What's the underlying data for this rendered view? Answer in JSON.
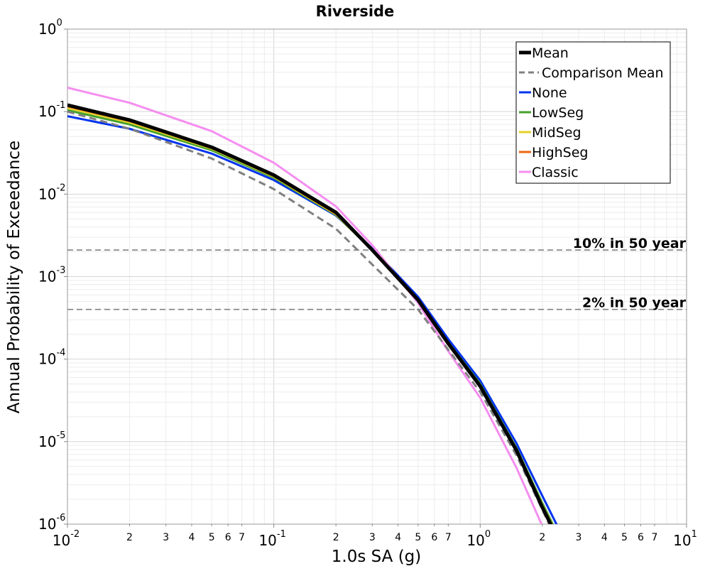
{
  "chart_data": {
    "type": "line",
    "title": "Riverside",
    "xlabel": "1.0s SA (g)",
    "ylabel": "Annual Probability of Exceedance",
    "xscale": "log",
    "yscale": "log",
    "xlim": [
      0.01,
      10
    ],
    "ylim": [
      1e-06,
      1
    ],
    "grid": true,
    "legend_position": "top-right",
    "x_major_ticks": [
      {
        "value": 0.01,
        "base": "10",
        "exp": "-2"
      },
      {
        "value": 0.1,
        "base": "10",
        "exp": "-1"
      },
      {
        "value": 1,
        "base": "10",
        "exp": "0"
      },
      {
        "value": 10,
        "base": "10",
        "exp": "1"
      }
    ],
    "x_minor_ticks": [
      {
        "value": 0.02,
        "label": "2"
      },
      {
        "value": 0.03,
        "label": "3"
      },
      {
        "value": 0.04,
        "label": "4"
      },
      {
        "value": 0.05,
        "label": "5"
      },
      {
        "value": 0.06,
        "label": "6"
      },
      {
        "value": 0.07,
        "label": "7"
      },
      {
        "value": 0.2,
        "label": "2"
      },
      {
        "value": 0.3,
        "label": "3"
      },
      {
        "value": 0.4,
        "label": "4"
      },
      {
        "value": 0.5,
        "label": "5"
      },
      {
        "value": 0.6,
        "label": "6"
      },
      {
        "value": 0.7,
        "label": "7"
      },
      {
        "value": 2,
        "label": "2"
      },
      {
        "value": 3,
        "label": "3"
      },
      {
        "value": 4,
        "label": "4"
      },
      {
        "value": 5,
        "label": "5"
      },
      {
        "value": 6,
        "label": "6"
      },
      {
        "value": 7,
        "label": "7"
      }
    ],
    "y_major_ticks": [
      {
        "value": 1,
        "base": "10",
        "exp": "0"
      },
      {
        "value": 0.1,
        "base": "10",
        "exp": "-1"
      },
      {
        "value": 0.01,
        "base": "10",
        "exp": "-2"
      },
      {
        "value": 0.001,
        "base": "10",
        "exp": "-3"
      },
      {
        "value": 0.0001,
        "base": "10",
        "exp": "-4"
      },
      {
        "value": 1e-05,
        "base": "10",
        "exp": "-5"
      },
      {
        "value": 1e-06,
        "base": "10",
        "exp": "-6"
      }
    ],
    "reference_lines": [
      {
        "label": "10% in 50 year",
        "y": 0.0021,
        "color": "#808080"
      },
      {
        "label": "2% in 50 year",
        "y": 0.0004,
        "color": "#808080"
      }
    ],
    "x": [
      0.01,
      0.02,
      0.05,
      0.1,
      0.2,
      0.3,
      0.5,
      0.7,
      1.0,
      1.5,
      2.0,
      2.5
    ],
    "series": [
      {
        "name": "None",
        "color": "#0033ee",
        "dash": "solid",
        "width": 3,
        "values": [
          0.088,
          0.062,
          0.031,
          0.0148,
          0.0055,
          0.0022,
          0.00057,
          0.000175,
          5.5e-05,
          9.5e-06,
          2.2e-06,
          7.2e-07
        ]
      },
      {
        "name": "LowSeg",
        "color": "#44a12b",
        "dash": "solid",
        "width": 3,
        "values": [
          0.104,
          0.07,
          0.034,
          0.0158,
          0.0056,
          0.0021,
          0.00052,
          0.00016,
          5e-05,
          8.3e-06,
          1.8e-06,
          5.8e-07
        ]
      },
      {
        "name": "MidSeg",
        "color": "#e5d02a",
        "dash": "solid",
        "width": 3,
        "values": [
          0.111,
          0.074,
          0.0355,
          0.0163,
          0.0057,
          0.0021,
          0.00051,
          0.000155,
          4.8e-05,
          8e-06,
          1.7e-06,
          5.5e-07
        ]
      },
      {
        "name": "HighSeg",
        "color": "#ee6611",
        "dash": "solid",
        "width": 3,
        "values": [
          0.116,
          0.077,
          0.0365,
          0.0166,
          0.0058,
          0.0021,
          0.0005,
          0.00015,
          4.6e-05,
          7.6e-06,
          1.6e-06,
          5e-07
        ]
      },
      {
        "name": "Classic",
        "color": "#f58ef0",
        "dash": "solid",
        "width": 3,
        "values": [
          0.195,
          0.128,
          0.058,
          0.024,
          0.0071,
          0.0024,
          0.00048,
          0.000125,
          3.4e-05,
          4.8e-06,
          9.5e-07,
          2.5e-07
        ]
      },
      {
        "name": "Comparison Mean",
        "color": "#808080",
        "dash": "dashed",
        "width": 3,
        "values": [
          0.1,
          0.062,
          0.027,
          0.0115,
          0.0038,
          0.0014,
          0.0004,
          0.00013,
          4e-05,
          6.8e-06,
          1.5e-06,
          4.5e-07
        ]
      },
      {
        "name": "Mean",
        "color": "#000000",
        "dash": "solid",
        "width": 5,
        "values": [
          0.12,
          0.079,
          0.037,
          0.017,
          0.006,
          0.0021,
          0.00052,
          0.000155,
          4.7e-05,
          7.8e-06,
          1.6e-06,
          5.2e-07
        ]
      }
    ],
    "legend_order": [
      "Mean",
      "Comparison Mean",
      "None",
      "LowSeg",
      "MidSeg",
      "HighSeg",
      "Classic"
    ]
  }
}
